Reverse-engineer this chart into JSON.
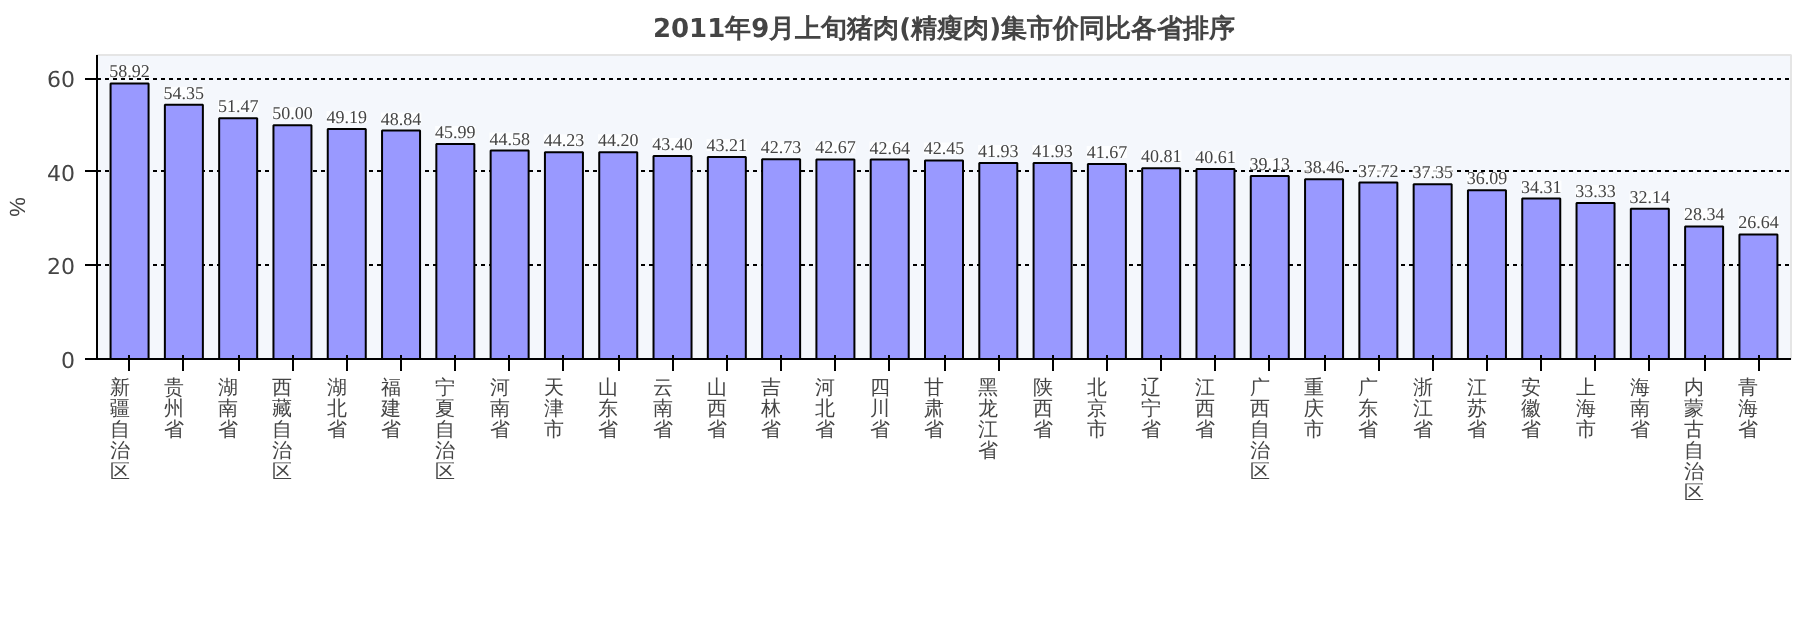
{
  "chart_data": {
    "type": "bar",
    "title": "2011年9月上旬猪肉(精瘦肉)集市价同比各省排序",
    "ylabel": "%",
    "categories": [
      "新疆自治区",
      "贵州省",
      "湖南省",
      "西藏自治区",
      "湖北省",
      "福建省",
      "宁夏自治区",
      "河南省",
      "天津市",
      "山东省",
      "云南省",
      "山西省",
      "吉林省",
      "河北省",
      "四川省",
      "甘肃省",
      "黑龙江省",
      "陕西省",
      "北京市",
      "辽宁省",
      "江西省",
      "广西自治区",
      "重庆市",
      "广东省",
      "浙江省",
      "江苏省",
      "安徽省",
      "上海市",
      "海南省",
      "内蒙古自治区",
      "青海省"
    ],
    "values": [
      58.92,
      54.35,
      51.47,
      50.0,
      49.19,
      48.84,
      45.99,
      44.58,
      44.23,
      44.2,
      43.4,
      43.21,
      42.73,
      42.67,
      42.64,
      42.45,
      41.93,
      41.93,
      41.67,
      40.81,
      40.61,
      39.13,
      38.46,
      37.72,
      37.35,
      36.09,
      34.31,
      33.33,
      32.14,
      28.34,
      26.64
    ],
    "value_labels": [
      "58.92",
      "54.35",
      "51.47",
      "50.00",
      "49.19",
      "48.84",
      "45.99",
      "44.58",
      "44.23",
      "44.20",
      "43.40",
      "43.21",
      "42.73",
      "42.67",
      "42.64",
      "42.45",
      "41.93",
      "41.93",
      "41.67",
      "40.81",
      "40.61",
      "39.13",
      "38.46",
      "37.72",
      "37.35",
      "36.09",
      "34.31",
      "33.33",
      "32.14",
      "28.34",
      "26.64"
    ],
    "color": "#9999ff",
    "ylim": [
      0,
      65
    ],
    "yticks": [
      0,
      20,
      40,
      60
    ],
    "grid": "y"
  }
}
